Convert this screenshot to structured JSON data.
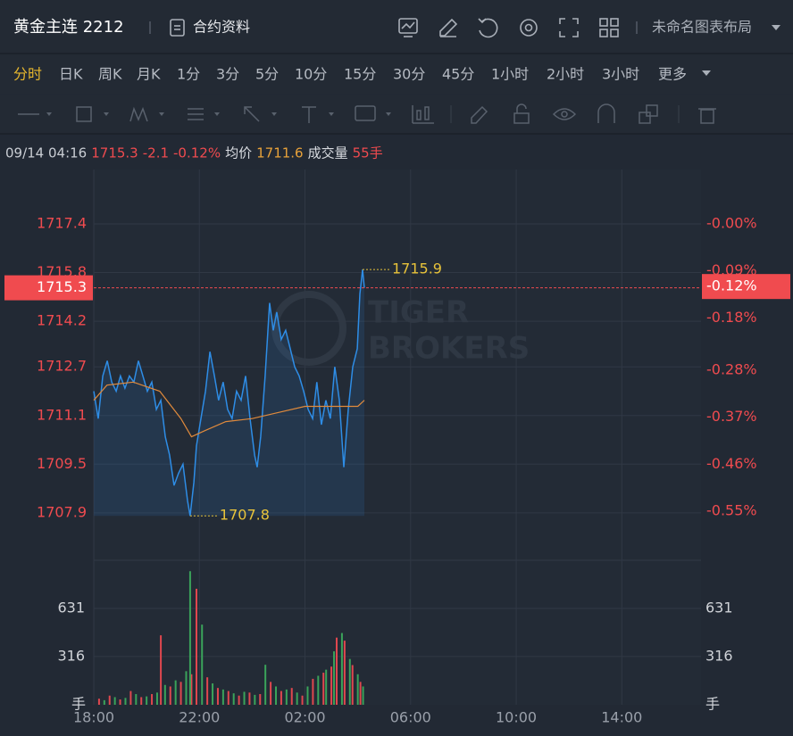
{
  "header": {
    "title": "黄金主连 2212",
    "contract_info": "合约资料",
    "layout_name": "未命名图表布局"
  },
  "intervals": [
    "分时",
    "日K",
    "周K",
    "月K",
    "1分",
    "3分",
    "5分",
    "10分",
    "15分",
    "30分",
    "45分",
    "1小时",
    "2小时",
    "3小时",
    "更多"
  ],
  "info": {
    "time": "09/14 04:16",
    "price": 1715.3,
    "change": -2.1,
    "change_pct": "-0.12%",
    "avg_label": "均价",
    "avg": 1711.6,
    "volume_label": "成交量",
    "volume": "55手"
  },
  "chart_data": [
    {
      "type": "line",
      "xlim": [
        0,
        23
      ],
      "xticks": [
        {
          "value": 0,
          "label": "18:00"
        },
        {
          "value": 4,
          "label": "22:00"
        },
        {
          "value": 8,
          "label": "02:00"
        },
        {
          "value": 12,
          "label": "06:00"
        },
        {
          "value": 16,
          "label": "10:00"
        },
        {
          "value": 20,
          "label": "14:00"
        }
      ],
      "ylim": [
        1706.34,
        1719.19
      ],
      "yticks": [
        1707.9,
        1709.5,
        1711.1,
        1712.7,
        1714.2,
        1715.8,
        1717.4
      ],
      "y2lim": [
        -0.644,
        0.104
      ],
      "y2ticks": [
        {
          "value": -0.55,
          "label": "-0.55%"
        },
        {
          "value": -0.46,
          "label": "-0.46%"
        },
        {
          "value": -0.37,
          "label": "-0.37%"
        },
        {
          "value": -0.28,
          "label": "-0.28%"
        },
        {
          "value": -0.18,
          "label": "-0.18%"
        },
        {
          "value": -0.09,
          "label": "-0.09%"
        },
        {
          "value": 0,
          "label": "-0.00%"
        }
      ],
      "grid": true,
      "series": [
        {
          "color": "#2e8de6",
          "x": [
            0,
            0.17,
            0.34,
            0.51,
            0.68,
            0.85,
            1.01,
            1.18,
            1.35,
            1.52,
            1.69,
            1.86,
            2.03,
            2.2,
            2.37,
            2.54,
            2.71,
            2.87,
            3.04,
            3.21,
            3.38,
            3.55,
            3.65,
            3.79,
            3.89,
            4.06,
            4.23,
            4.4,
            4.57,
            4.73,
            4.9,
            5.07,
            5.24,
            5.41,
            5.58,
            5.75,
            5.92,
            6.09,
            6.19,
            6.32,
            6.49,
            6.66,
            6.8,
            6.93,
            7.1,
            7.27,
            7.44,
            7.61,
            7.78,
            7.95,
            8.12,
            8.29,
            8.45,
            8.62,
            8.79,
            8.96,
            9.13,
            9.3,
            9.47,
            9.64,
            9.81,
            9.98,
            10.08,
            10.18,
            10.25
          ],
          "values": [
            1711.9,
            1711.0,
            1712.4,
            1712.9,
            1712.2,
            1711.9,
            1712.4,
            1712.0,
            1712.4,
            1712.2,
            1712.9,
            1712.4,
            1711.9,
            1712.2,
            1711.3,
            1711.6,
            1710.4,
            1709.8,
            1708.8,
            1709.2,
            1709.5,
            1708.3,
            1707.8,
            1708.9,
            1710.1,
            1711.0,
            1711.9,
            1713.2,
            1712.4,
            1711.6,
            1712.2,
            1711.3,
            1711.0,
            1711.9,
            1711.6,
            1712.4,
            1711.0,
            1709.8,
            1709.4,
            1710.4,
            1712.4,
            1714.8,
            1713.9,
            1714.5,
            1713.6,
            1713.9,
            1713.3,
            1712.7,
            1712.4,
            1711.9,
            1711.3,
            1711.0,
            1712.2,
            1710.8,
            1711.6,
            1711.0,
            1712.7,
            1711.6,
            1709.4,
            1711.3,
            1712.7,
            1713.3,
            1715.1,
            1715.9,
            1715.3
          ]
        },
        {
          "color": "#e08a3c",
          "x": [
            0,
            0.5,
            1.5,
            2.5,
            3.3,
            3.7,
            4.2,
            5,
            6,
            7,
            8,
            9,
            10,
            10.25
          ],
          "values": [
            1711.6,
            1712.1,
            1712.2,
            1711.9,
            1711.0,
            1710.4,
            1710.6,
            1710.9,
            1711.0,
            1711.2,
            1711.4,
            1711.4,
            1711.4,
            1711.6
          ]
        }
      ],
      "last": {
        "value": 1715.3,
        "pct": {
          "value": -0.12,
          "label": "-0.12%"
        },
        "color": "#f04b4f"
      },
      "annotations": [
        {
          "x": 10.18,
          "y": 1715.9
        },
        {
          "x": 3.65,
          "y": 1707.8
        }
      ],
      "watermark": [
        "TIGER",
        "BROKERS"
      ]
    },
    {
      "type": "bar",
      "ylim": [
        0,
        935
      ],
      "yticks": [
        316,
        631
      ],
      "y_label": "手",
      "grid": true,
      "series": [
        {
          "color": "#e0474e",
          "x": [
            0.2,
            0.6,
            1.0,
            1.4,
            1.8,
            2.2,
            2.54,
            2.9,
            3.3,
            3.7,
            3.89,
            4.3,
            4.7,
            5.1,
            5.5,
            5.9,
            6.3,
            6.7,
            7.1,
            7.5,
            7.9,
            8.3,
            8.7,
            9.0,
            9.2,
            9.5,
            9.8,
            10.1
          ],
          "values": [
            40,
            60,
            35,
            90,
            50,
            70,
            455,
            120,
            150,
            200,
            760,
            180,
            110,
            90,
            60,
            80,
            70,
            150,
            90,
            110,
            60,
            170,
            210,
            250,
            440,
            420,
            260,
            150
          ]
        },
        {
          "color": "#3aa35a",
          "x": [
            0.4,
            0.8,
            1.2,
            1.6,
            2.0,
            2.4,
            2.7,
            3.1,
            3.5,
            3.65,
            4.1,
            4.5,
            4.9,
            5.3,
            5.7,
            6.1,
            6.5,
            6.9,
            7.3,
            7.7,
            8.1,
            8.5,
            8.8,
            9.1,
            9.4,
            9.7,
            10.0,
            10.2
          ],
          "values": [
            30,
            50,
            45,
            70,
            55,
            80,
            130,
            160,
            220,
            875,
            525,
            140,
            100,
            75,
            85,
            65,
            262,
            120,
            100,
            80,
            120,
            190,
            230,
            350,
            470,
            300,
            200,
            120
          ]
        }
      ]
    }
  ]
}
